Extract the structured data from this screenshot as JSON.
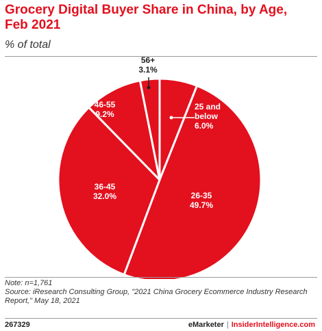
{
  "header": {
    "title": "Grocery Digital Buyer Share in China, by Age, Feb 2021",
    "subtitle": "% of total"
  },
  "chart_data": {
    "type": "pie",
    "title": "Grocery Digital Buyer Share in China, by Age, Feb 2021",
    "subtitle": "% of total",
    "unit": "%",
    "color": "#e3101e",
    "slices": [
      {
        "label": "25 and below",
        "value": 6.0,
        "value_label": "6.0%"
      },
      {
        "label": "26-35",
        "value": 49.7,
        "value_label": "49.7%"
      },
      {
        "label": "36-45",
        "value": 32.0,
        "value_label": "32.0%"
      },
      {
        "label": "46-55",
        "value": 9.2,
        "value_label": "9.2%"
      },
      {
        "label": "56+",
        "value": 3.1,
        "value_label": "3.1%"
      }
    ]
  },
  "footnotes": {
    "note": "Note: n=1,761",
    "source": "Source: iResearch Consulting Group, \"2021 China Grocery Ecommerce Industry Research Report,\" May 18, 2021"
  },
  "footer": {
    "chart_id": "267329",
    "brand": "eMarketer",
    "separator": "|",
    "site": "InsiderIntelligence.com"
  }
}
